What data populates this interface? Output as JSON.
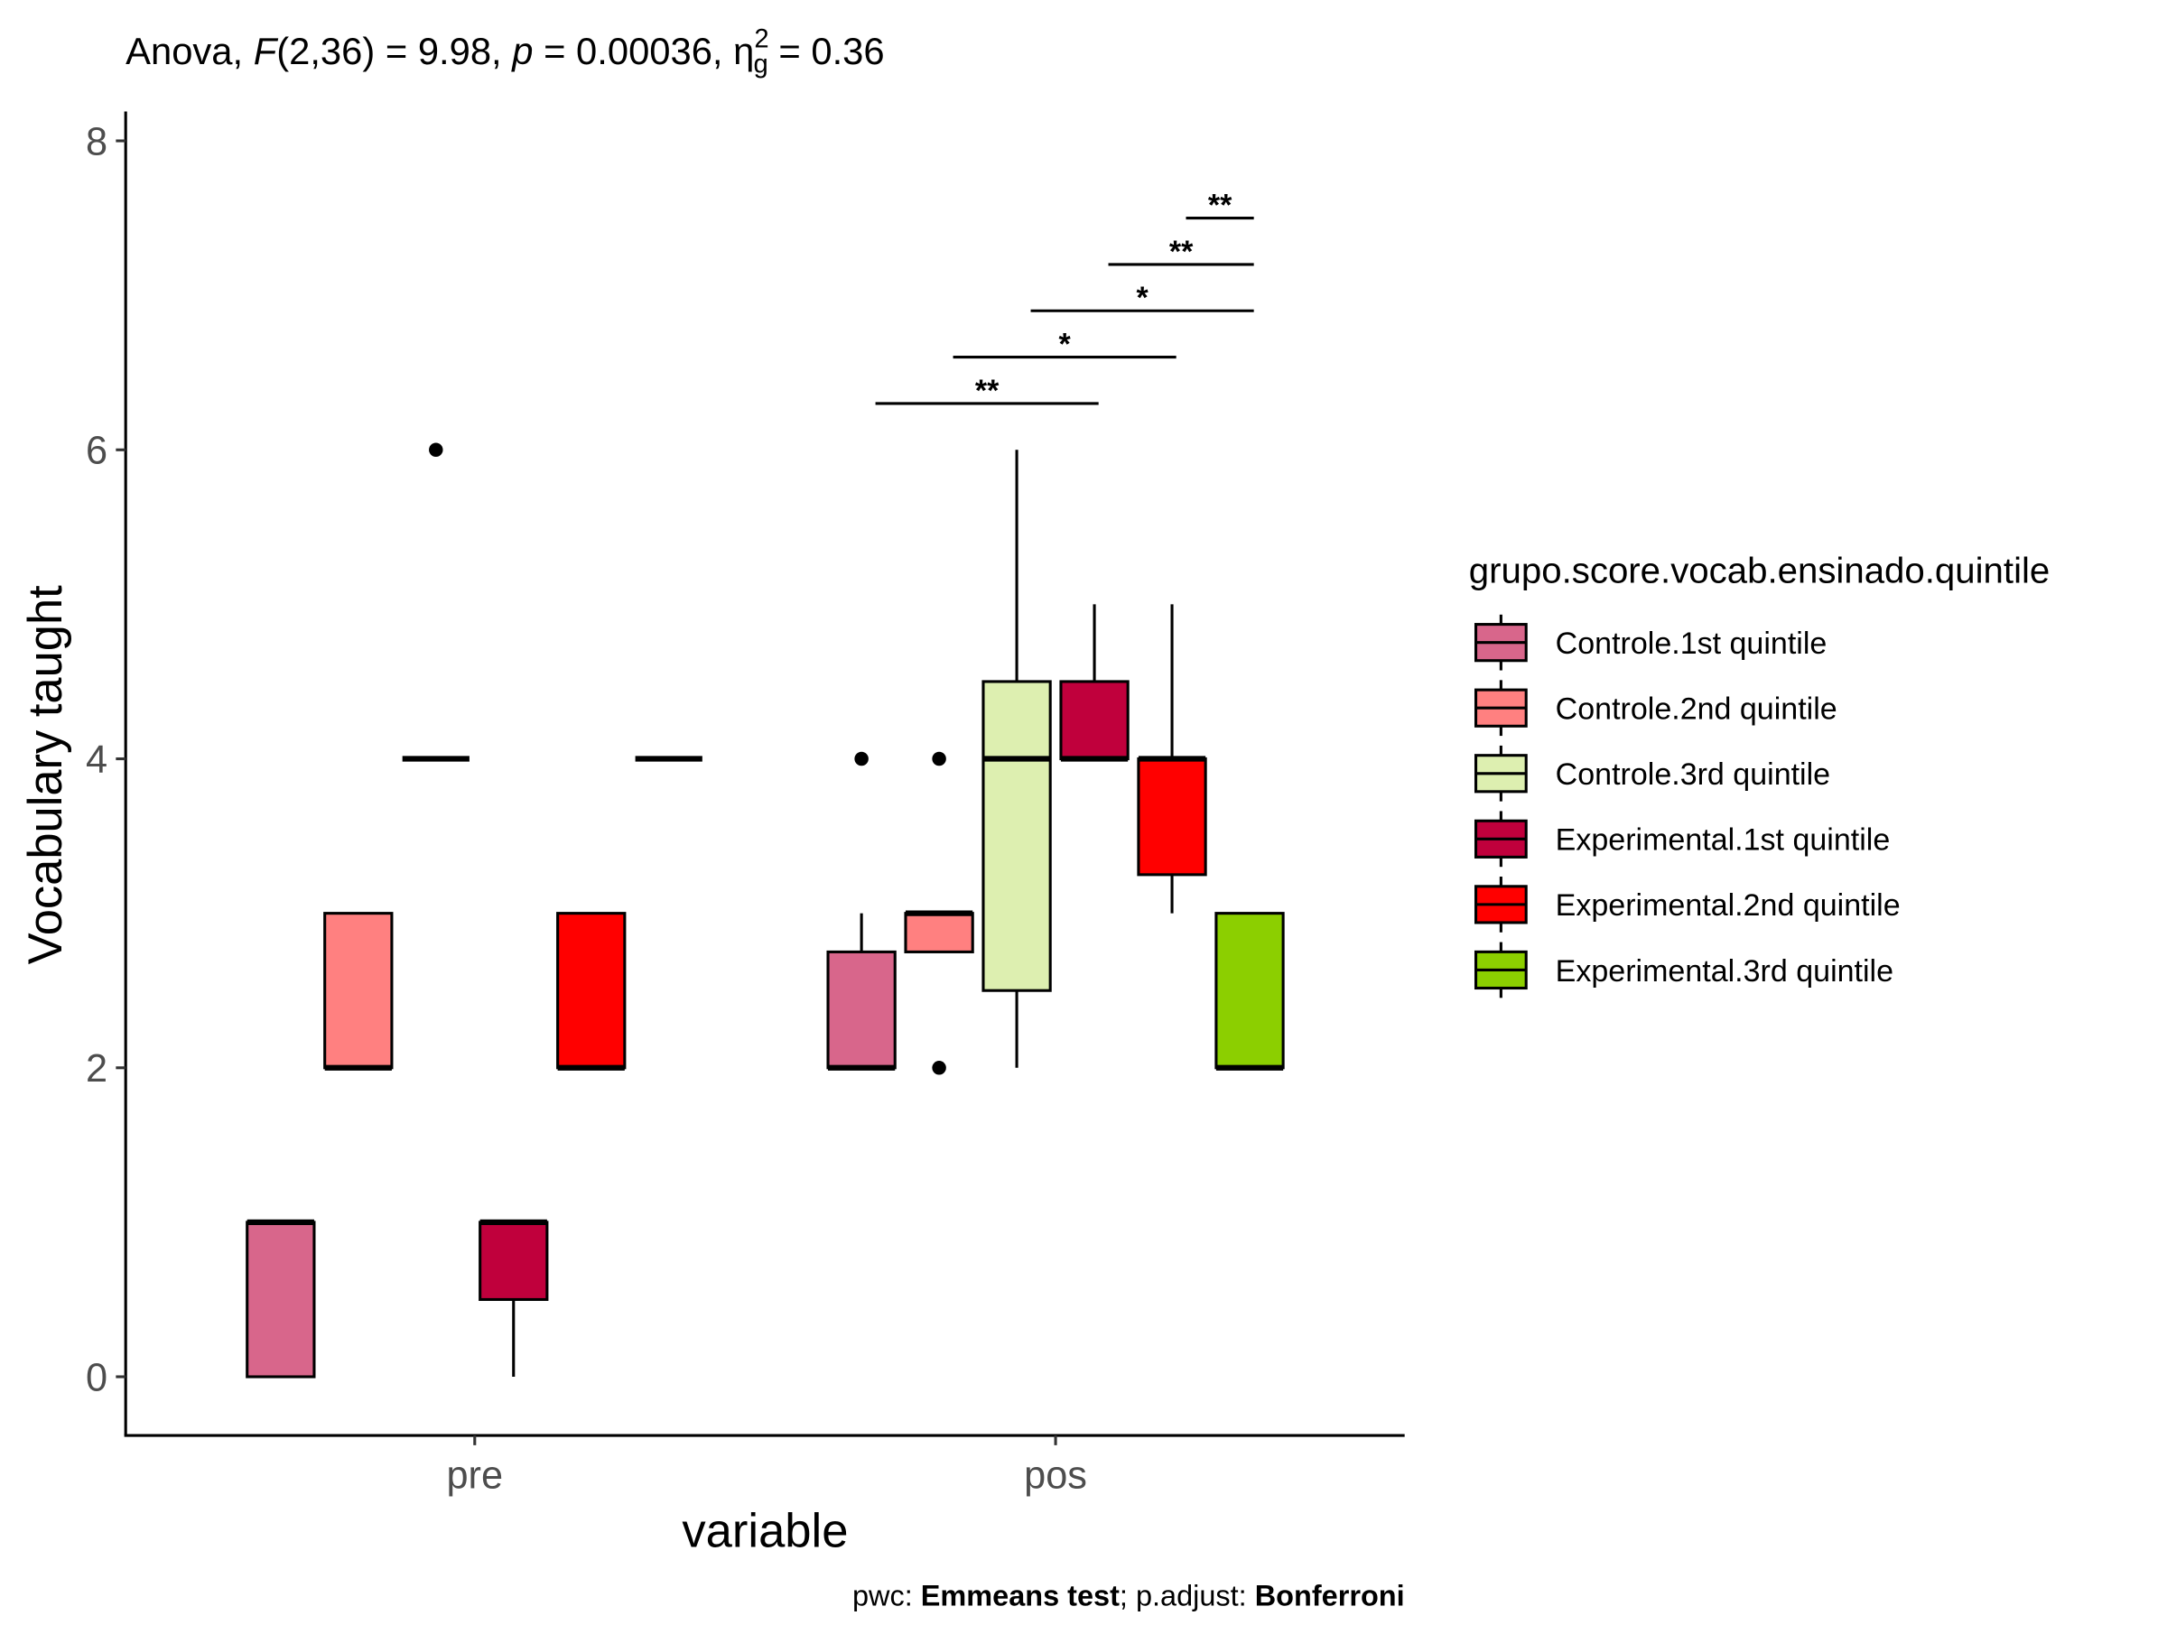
{
  "chart_data": {
    "type": "boxplot",
    "title_segments": [
      {
        "text": "Anova, "
      },
      {
        "text": "F",
        "italic": true
      },
      {
        "text": "(2,36) = 9.98, "
      },
      {
        "text": "p",
        "italic": true
      },
      {
        "text": " = 0.00036, η"
      },
      {
        "text": "2",
        "shift": "sup"
      },
      {
        "text": "g",
        "shift": "sub"
      },
      {
        "text": " = 0.36"
      }
    ],
    "caption_segments": [
      {
        "text": "pwc: "
      },
      {
        "text": "Emmeans test",
        "bold": true
      },
      {
        "text": "; p.adjust: "
      },
      {
        "text": "Bonferroni",
        "bold": true
      }
    ],
    "x_label": "variable",
    "y_label": "Vocabulary taught",
    "legend_title": "grupo.score.vocab.ensinado.quintile",
    "legend_position": "right",
    "categories": [
      "pre",
      "pos"
    ],
    "ylim": [
      -0.38,
      8.19
    ],
    "yticks": [
      0,
      2,
      4,
      6,
      8
    ],
    "series": [
      {
        "name": "Controle.1st quintile",
        "color": "#d8668b",
        "boxes": [
          {
            "min": 0,
            "q1": 0,
            "median": 1,
            "q3": 1,
            "max": 1,
            "outliers": []
          },
          {
            "min": 2,
            "q1": 2,
            "median": 2,
            "q3": 2.75,
            "max": 3,
            "outliers": [
              4
            ]
          }
        ]
      },
      {
        "name": "Controle.2nd quintile",
        "color": "#ff8080",
        "boxes": [
          {
            "min": 2,
            "q1": 2,
            "median": 2,
            "q3": 3,
            "max": 3,
            "outliers": []
          },
          {
            "min": 2.75,
            "q1": 2.75,
            "median": 3,
            "q3": 3,
            "max": 3,
            "outliers": [
              4,
              2
            ]
          }
        ]
      },
      {
        "name": "Controle.3rd quintile",
        "color": "#ddefb0",
        "boxes": [
          {
            "min": 4,
            "q1": 4,
            "median": 4,
            "q3": 4,
            "max": 4,
            "outliers": [
              6
            ]
          },
          {
            "min": 2,
            "q1": 2.5,
            "median": 4,
            "q3": 4.5,
            "max": 6,
            "outliers": []
          }
        ]
      },
      {
        "name": "Experimental.1st quintile",
        "color": "#c0003c",
        "boxes": [
          {
            "min": 0,
            "q1": 0.5,
            "median": 1,
            "q3": 1,
            "max": 1,
            "outliers": []
          },
          {
            "min": 4,
            "q1": 4,
            "median": 4,
            "q3": 4.5,
            "max": 5,
            "outliers": []
          }
        ]
      },
      {
        "name": "Experimental.2nd quintile",
        "color": "#ff0000",
        "boxes": [
          {
            "min": 2,
            "q1": 2,
            "median": 2,
            "q3": 3,
            "max": 3,
            "outliers": []
          },
          {
            "min": 3,
            "q1": 3.25,
            "median": 4,
            "q3": 4,
            "max": 5,
            "outliers": []
          }
        ]
      },
      {
        "name": "Experimental.3rd quintile",
        "color": "#8ccf00",
        "boxes": [
          {
            "min": 4,
            "q1": 4,
            "median": 4,
            "q3": 4,
            "max": 4,
            "outliers": []
          },
          {
            "min": 2,
            "q1": 2,
            "median": 2,
            "q3": 3,
            "max": 3,
            "outliers": []
          }
        ]
      }
    ],
    "brackets": [
      {
        "category": "pos",
        "from": "Controle.1st quintile",
        "to": "Experimental.1st quintile",
        "y": 6.3,
        "label": "**"
      },
      {
        "category": "pos",
        "from": "Controle.2nd quintile",
        "to": "Experimental.2nd quintile",
        "y": 6.6,
        "label": "*"
      },
      {
        "category": "pos",
        "from": "Controle.3rd quintile",
        "to": "Experimental.3rd quintile",
        "y": 6.9,
        "label": "*"
      },
      {
        "category": "pos",
        "from": "Experimental.1st quintile",
        "to": "Experimental.3rd quintile",
        "y": 7.2,
        "label": "**"
      },
      {
        "category": "pos",
        "from": "Experimental.2nd quintile",
        "to": "Experimental.3rd quintile",
        "y": 7.5,
        "label": "**"
      }
    ]
  }
}
